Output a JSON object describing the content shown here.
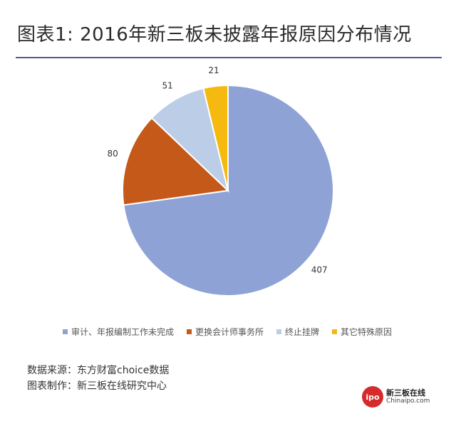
{
  "title": "图表1: 2016年新三板未披露年报原因分布情况",
  "chart_data": {
    "type": "pie",
    "categories": [
      "审计、年报编制工作未完成",
      "更换会计师事务所",
      "终止挂牌",
      "其它特殊原因"
    ],
    "values": [
      407,
      80,
      51,
      21
    ],
    "colors": [
      "#8fa2d6",
      "#c4591a",
      "#bccde8",
      "#f5b90f"
    ],
    "data_labels": [
      "407",
      "80",
      "51",
      "21"
    ],
    "legend_position": "bottom"
  },
  "footer": {
    "source": "数据来源：东方财富choice数据",
    "producer": "图表制作：新三板在线研究中心"
  },
  "logo": {
    "badge": "ipo",
    "name_cn": "新三板在线",
    "name_en": "Chinaipo.com"
  }
}
